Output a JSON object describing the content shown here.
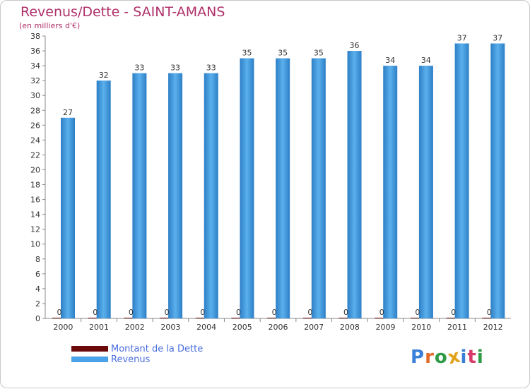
{
  "header": {
    "title": "Revenus/Dette - SAINT-AMANS",
    "subtitle": "(en milliers d'€)"
  },
  "legend": {
    "items": [
      {
        "label": "Montant de la Dette",
        "color": "#6b0a0a"
      },
      {
        "label": "Revenus",
        "color": "#4aa3e8"
      }
    ]
  },
  "logo": {
    "letters": [
      {
        "char": "P",
        "color": "#3a7fd8"
      },
      {
        "char": "r",
        "color": "#e36b2a"
      },
      {
        "char": "o",
        "color": "#2f9b47"
      },
      {
        "char": "x",
        "color": "#e0a21a"
      },
      {
        "char": "i",
        "color": "#3a7fd8"
      },
      {
        "char": "t",
        "color": "#d83a6a"
      },
      {
        "char": "i",
        "color": "#2f9b47"
      }
    ]
  },
  "chart_data": {
    "type": "bar",
    "title": "Revenus/Dette - SAINT-AMANS",
    "subtitle": "(en milliers d'€)",
    "xlabel": "",
    "ylabel": "",
    "categories": [
      "2000",
      "2001",
      "2002",
      "2003",
      "2004",
      "2005",
      "2006",
      "2007",
      "2008",
      "2009",
      "2010",
      "2011",
      "2012"
    ],
    "series": [
      {
        "name": "Montant de la Dette",
        "color": "#6b0a0a",
        "values": [
          0,
          0,
          0,
          0,
          0,
          0,
          0,
          0,
          0,
          0,
          0,
          0,
          0
        ]
      },
      {
        "name": "Revenus",
        "color": "#4aa3e8",
        "values": [
          27,
          32,
          33,
          33,
          33,
          35,
          35,
          35,
          36,
          34,
          34,
          37,
          37
        ]
      }
    ],
    "ylim": [
      0,
      38
    ],
    "yticks": [
      0,
      2,
      4,
      6,
      8,
      10,
      12,
      14,
      16,
      18,
      20,
      22,
      24,
      26,
      28,
      30,
      32,
      34,
      36,
      38
    ],
    "grid": false,
    "legend_position": "bottom-left"
  }
}
